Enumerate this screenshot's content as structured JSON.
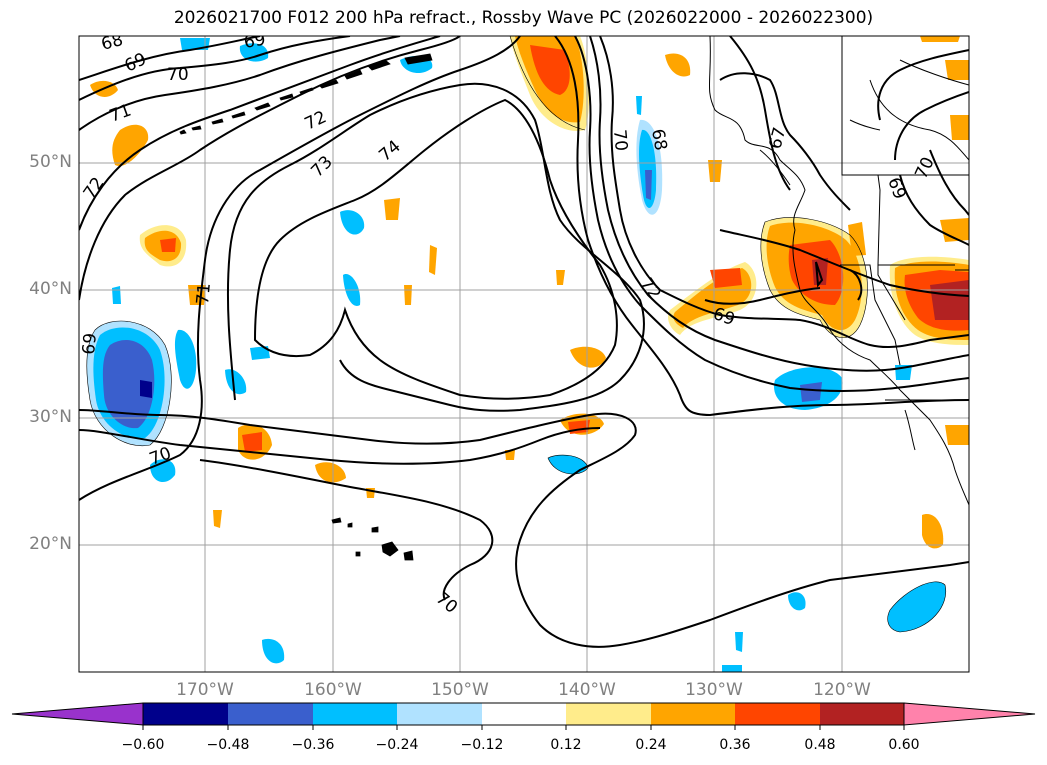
{
  "title": "2026021700 F012 200 hPa refract., Rossby Wave PC (2026022000 - 2026022300)",
  "lat_labels": [
    "50°N",
    "40°N",
    "30°N",
    "20°N"
  ],
  "lon_labels": [
    "170°W",
    "160°W",
    "150°W",
    "140°W",
    "130°W",
    "120°W"
  ],
  "contour_labels": [
    "68",
    "69",
    "69",
    "70",
    "71",
    "72",
    "72",
    "73",
    "74",
    "72",
    "70",
    "68",
    "67",
    "69",
    "70",
    "69",
    "71",
    "69",
    "70",
    "70"
  ],
  "colorbar": {
    "ticks": [
      "−0.60",
      "−0.48",
      "−0.36",
      "−0.24",
      "−0.12",
      "0.12",
      "0.24",
      "0.36",
      "0.48",
      "0.60"
    ],
    "colors": [
      "#9932cc",
      "#00008b",
      "#3a5fcd",
      "#00bfff",
      "#b0e2ff",
      "#ffffff",
      "#ffec8b",
      "#ffa500",
      "#ff4500",
      "#b22222",
      "#ff82ab"
    ]
  }
}
